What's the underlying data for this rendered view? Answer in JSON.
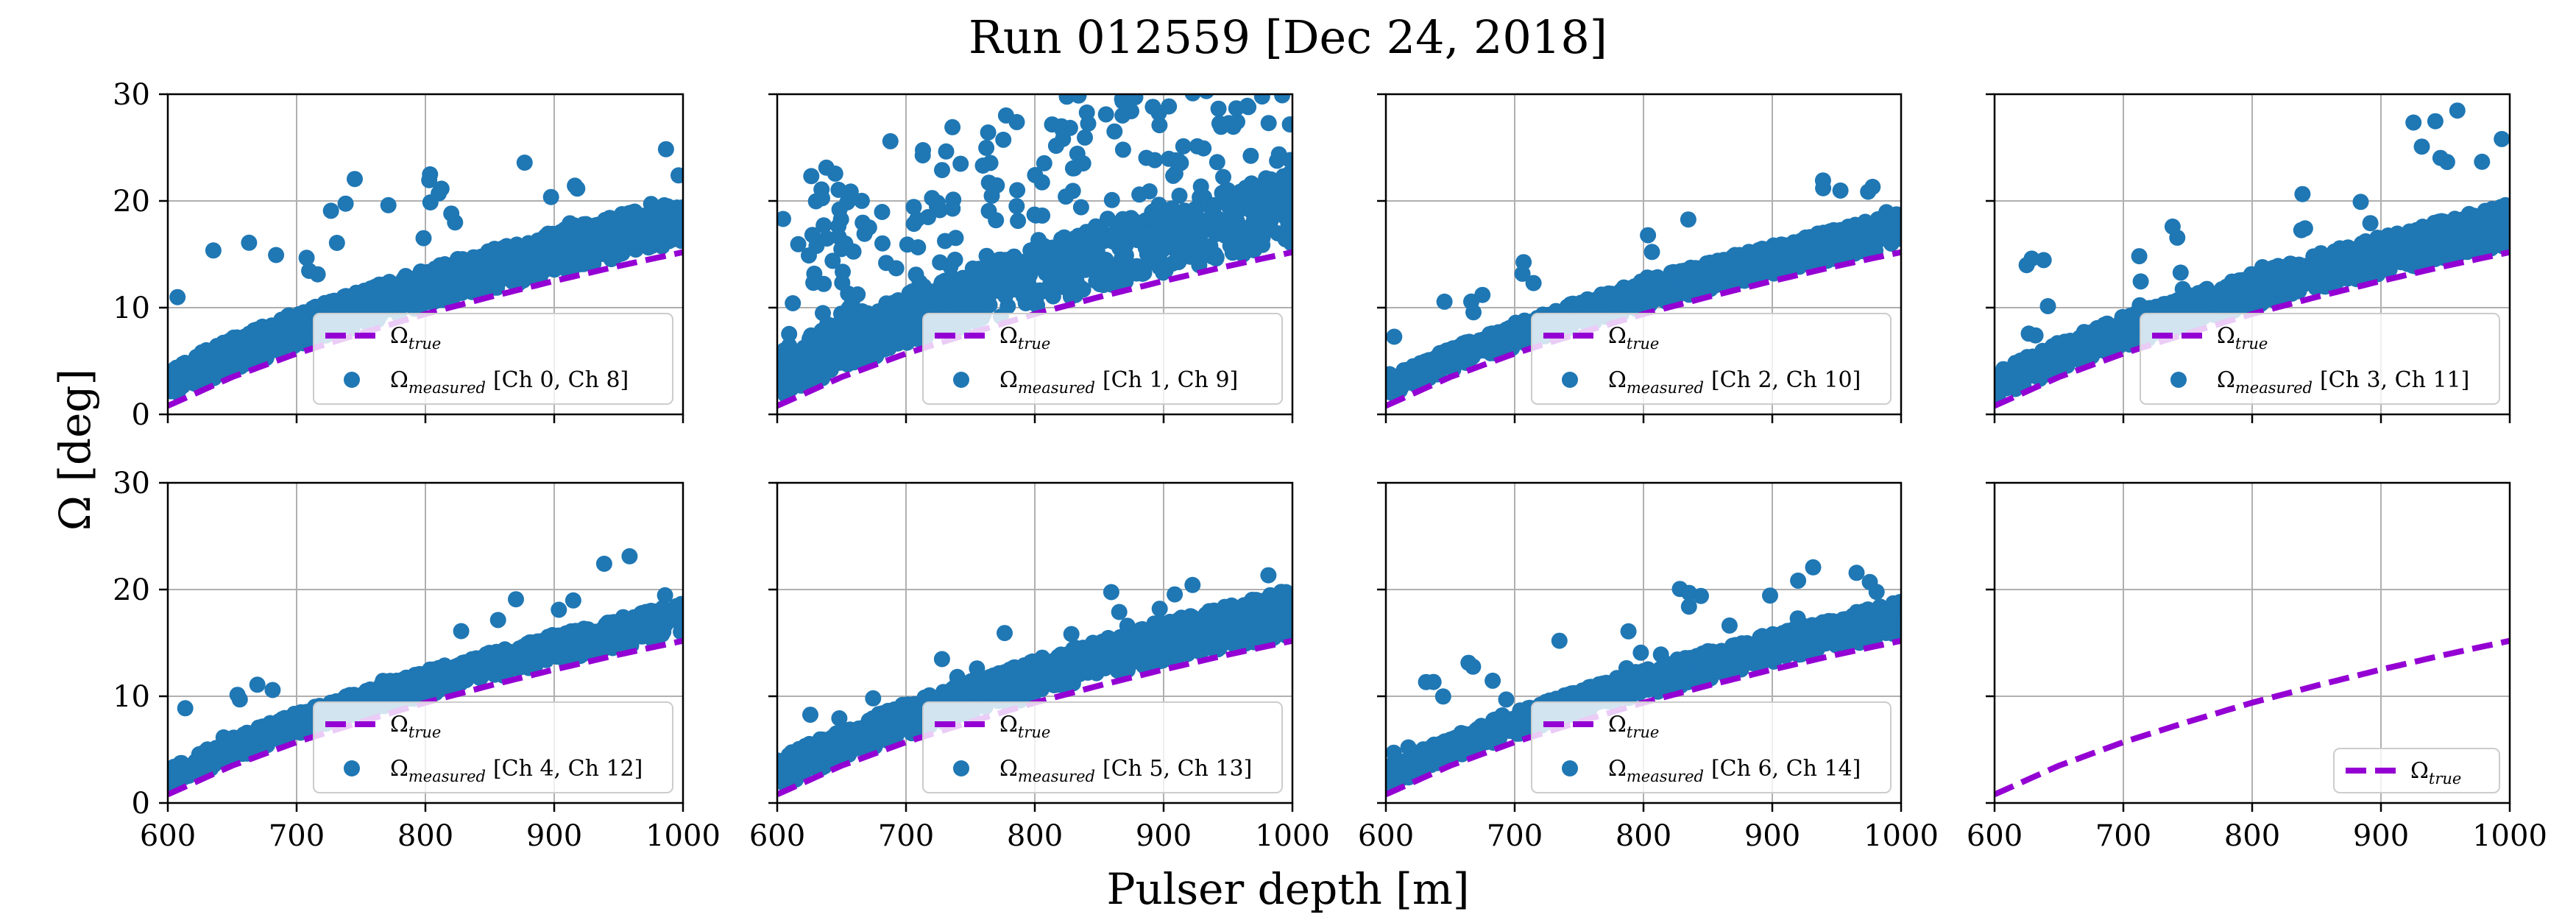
{
  "figure_title": "Run 012559 [Dec 24, 2018]",
  "chart_data": {
    "type": "scatter",
    "title": "Run 012559 [Dec 24, 2018]",
    "xlabel": "Pulser depth [m]",
    "ylabel": "Ω [deg]",
    "xlim": [
      600,
      1000
    ],
    "ylim": [
      0,
      30
    ],
    "x_ticks": [
      600,
      700,
      800,
      900,
      1000
    ],
    "y_ticks": [
      0,
      10,
      20,
      30
    ],
    "grid": true,
    "layout": "2 rows x 4 columns, shared axes",
    "legend_placement": "lower right",
    "colors": {
      "true_line": "#9400D3",
      "measured_points": "#1f77b4"
    },
    "true_curve": {
      "name": "Ωtrue",
      "style": "dashed",
      "x": [
        600,
        650,
        700,
        750,
        800,
        850,
        900,
        950,
        1000
      ],
      "y": [
        0.8,
        3.5,
        5.7,
        7.6,
        9.4,
        11.0,
        12.5,
        13.9,
        15.2
      ]
    },
    "panels": [
      {
        "legend_true": "true",
        "legend_measured_sub": "measured",
        "legend_measured_suffix": "[Ch 0, Ch 8]",
        "spread": 3.2,
        "outlier_rate": 0.04,
        "outlier_max": 13
      },
      {
        "legend_true": "true",
        "legend_measured_sub": "measured",
        "legend_measured_suffix": "[Ch 1, Ch 9]",
        "spread": 5.0,
        "outlier_rate": 0.22,
        "outlier_max": 17
      },
      {
        "legend_true": "true",
        "legend_measured_sub": "measured",
        "legend_measured_suffix": "[Ch 2, Ch 10]",
        "spread": 2.2,
        "outlier_rate": 0.02,
        "outlier_max": 7
      },
      {
        "legend_true": "true",
        "legend_measured_sub": "measured",
        "legend_measured_suffix": "[Ch 3, Ch 11]",
        "spread": 2.8,
        "outlier_rate": 0.04,
        "outlier_max": 11
      },
      {
        "legend_true": "true",
        "legend_measured_sub": "measured",
        "legend_measured_suffix": "[Ch 4, Ch 12]",
        "spread": 2.1,
        "outlier_rate": 0.02,
        "outlier_max": 6
      },
      {
        "legend_true": "true",
        "legend_measured_sub": "measured",
        "legend_measured_suffix": "[Ch 5, Ch 13]",
        "spread": 3.0,
        "outlier_rate": 0.02,
        "outlier_max": 6
      },
      {
        "legend_true": "true",
        "legend_measured_sub": "measured",
        "legend_measured_suffix": "[Ch 6, Ch 14]",
        "spread": 2.2,
        "outlier_rate": 0.03,
        "outlier_max": 7
      },
      {
        "legend_true": "true",
        "legend_measured_sub": null,
        "legend_measured_suffix": null,
        "spread": 0,
        "outlier_rate": 0,
        "outlier_max": 0
      }
    ],
    "points_per_panel": 900
  }
}
